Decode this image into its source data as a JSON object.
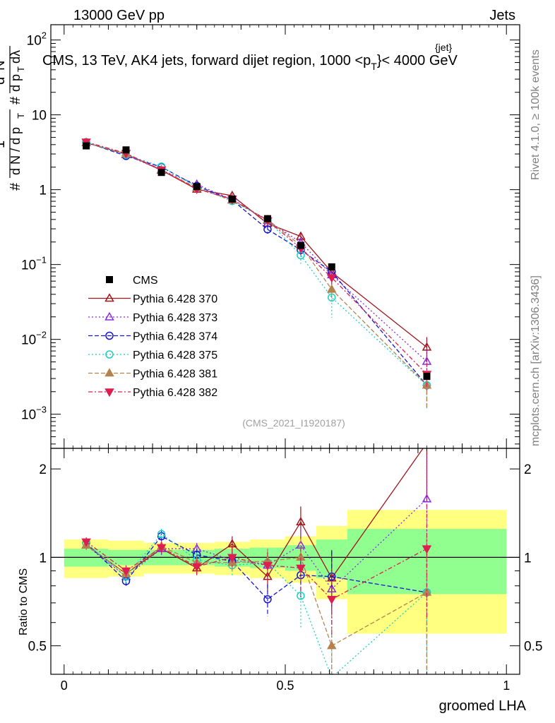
{
  "header": {
    "left": "13000 GeV pp",
    "right": "Jets",
    "title": "CMS, 13 TeV, AK4 jets, forward dijet region, 1000 <p",
    "title_sup": "{jet}",
    "title_sub": "T",
    "title_end": "}< 4000 GeV",
    "analysis_id": "(CMS_2021_I1920187)",
    "side_top": "Rivet 4.1.0, ≥ 100k events",
    "side_bottom": "mcplots.cern.ch [arXiv:1306.3436]"
  },
  "axes": {
    "ylabel_top": "1/N dN/dp_T d^2N/(dp_T dλ)",
    "ylabel_ratio": "Ratio to CMS",
    "xlabel": "groomed LHA",
    "yticks_main": [
      {
        "v": 0.001,
        "base": "10",
        "exp": "−3"
      },
      {
        "v": 0.01,
        "base": "10",
        "exp": "−2"
      },
      {
        "v": 0.1,
        "base": "10",
        "exp": "−1"
      },
      {
        "v": 1,
        "base": "1",
        "exp": ""
      },
      {
        "v": 10,
        "base": "10",
        "exp": ""
      },
      {
        "v": 100,
        "base": "10",
        "exp": "2"
      }
    ],
    "yticks_ratio": [
      {
        "v": 0.5,
        "label": "0.5"
      },
      {
        "v": 1,
        "label": "1"
      },
      {
        "v": 2,
        "label": "2"
      }
    ],
    "xticks": [
      {
        "v": 0,
        "label": "0"
      },
      {
        "v": 0.5,
        "label": "0.5"
      },
      {
        "v": 1,
        "label": "1"
      }
    ]
  },
  "chart_data": {
    "type": "scatter",
    "x_range": [
      -0.03,
      1.03
    ],
    "y_range_main": [
      0.00035,
      160
    ],
    "y_log_main": true,
    "y_range_ratio": [
      0.4,
      2.35
    ],
    "y_log_ratio": true,
    "bins": [
      {
        "lo": 0.0,
        "hi": 0.1,
        "x": 0.05
      },
      {
        "lo": 0.1,
        "hi": 0.18,
        "x": 0.14
      },
      {
        "lo": 0.18,
        "hi": 0.26,
        "x": 0.22
      },
      {
        "lo": 0.26,
        "hi": 0.34,
        "x": 0.3
      },
      {
        "lo": 0.34,
        "hi": 0.42,
        "x": 0.38
      },
      {
        "lo": 0.42,
        "hi": 0.5,
        "x": 0.46
      },
      {
        "lo": 0.5,
        "hi": 0.57,
        "x": 0.535
      },
      {
        "lo": 0.57,
        "hi": 0.64,
        "x": 0.605
      },
      {
        "lo": 0.64,
        "hi": 1.0,
        "x": 0.82
      }
    ],
    "data": {
      "name": "CMS",
      "color": "#000000",
      "values": [
        3.85,
        3.4,
        1.7,
        1.1,
        0.75,
        0.41,
        0.18,
        0.093,
        0.0032
      ],
      "band_inner": [
        0.07,
        0.06,
        0.06,
        0.06,
        0.07,
        0.08,
        0.1,
        0.15,
        0.25
      ],
      "band_outer": [
        0.15,
        0.14,
        0.12,
        0.12,
        0.13,
        0.15,
        0.18,
        0.28,
        0.45
      ]
    },
    "series": [
      {
        "name": "Pythia 6.428 370",
        "color": "#a0141e",
        "marker": "triangle-up-open",
        "dash": "",
        "ratio": [
          1.1,
          0.88,
          1.07,
          0.92,
          1.11,
          0.86,
          1.32,
          0.85,
          2.45
        ],
        "ratio_err": [
          0.04,
          0.04,
          0.05,
          0.05,
          0.07,
          0.1,
          0.17,
          0.21,
          0.9
        ]
      },
      {
        "name": "Pythia 6.428 373",
        "color": "#8a2be2",
        "marker": "triangle-up-open",
        "dash": "2,3",
        "ratio": [
          1.1,
          0.86,
          1.07,
          1.07,
          0.98,
          0.94,
          1.1,
          0.78,
          1.58
        ],
        "ratio_err": [
          0.04,
          0.04,
          0.05,
          0.05,
          0.07,
          0.1,
          0.16,
          0.2,
          0.65
        ]
      },
      {
        "name": "Pythia 6.428 374",
        "color": "#1515d0",
        "marker": "circle-open",
        "dash": "6,3",
        "ratio": [
          1.12,
          0.83,
          1.18,
          1.02,
          0.97,
          0.72,
          0.87,
          0.86,
          0.76
        ],
        "ratio_err": [
          0.04,
          0.04,
          0.05,
          0.05,
          0.07,
          0.09,
          0.15,
          0.19,
          0.4
        ]
      },
      {
        "name": "Pythia 6.428 375",
        "color": "#1ad0c0",
        "marker": "circle-open",
        "dash": "2,3",
        "ratio": [
          1.12,
          0.86,
          1.2,
          0.98,
          0.94,
          0.96,
          0.74,
          0.39,
          0.76
        ],
        "ratio_err": [
          0.04,
          0.04,
          0.05,
          0.05,
          0.07,
          0.1,
          0.17,
          0.18,
          0.4
        ]
      },
      {
        "name": "Pythia 6.428 381",
        "color": "#b4824f",
        "marker": "triangle-up-filled",
        "dash": "6,3",
        "ratio": [
          1.1,
          0.88,
          1.09,
          0.96,
          0.96,
          0.97,
          1.0,
          0.5,
          0.76
        ],
        "ratio_err": [
          0.04,
          0.04,
          0.05,
          0.05,
          0.07,
          0.1,
          0.16,
          0.14,
          0.4
        ]
      },
      {
        "name": "Pythia 6.428 382",
        "color": "#dc1e50",
        "marker": "triangle-down-filled",
        "dash": "6,3,2,3",
        "ratio": [
          1.13,
          0.9,
          1.08,
          0.93,
          1.0,
          0.94,
          0.92,
          0.72,
          1.07
        ],
        "ratio_err": [
          0.04,
          0.04,
          0.05,
          0.05,
          0.07,
          0.1,
          0.16,
          0.18,
          0.45
        ]
      }
    ]
  }
}
